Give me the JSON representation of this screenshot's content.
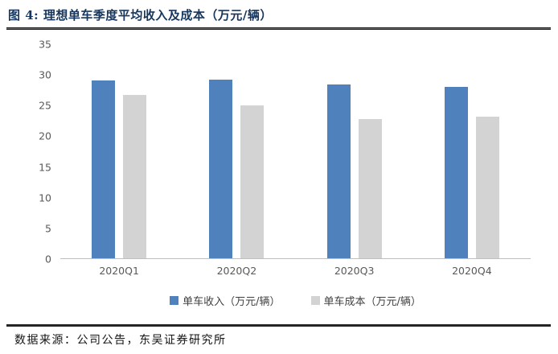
{
  "header": {
    "title": "图 4:  理想单车季度平均收入及成本（万元/辆）",
    "title_color": "#17365D"
  },
  "chart_data": {
    "type": "bar",
    "title": "理想单车季度平均收入及成本（万元/辆）",
    "categories": [
      "2020Q1",
      "2020Q2",
      "2020Q3",
      "2020Q4"
    ],
    "series": [
      {
        "name": "单车收入（万元/辆）",
        "color": "#4F81BD",
        "values": [
          29.1,
          29.2,
          28.4,
          28.0
        ]
      },
      {
        "name": "单车成本（万元/辆）",
        "color": "#D3D3D3",
        "values": [
          26.7,
          25.0,
          22.8,
          23.2
        ]
      }
    ],
    "xlabel": "",
    "ylabel": "",
    "ylim": [
      0,
      35
    ],
    "yticks": [
      0,
      5,
      10,
      15,
      20,
      25,
      30,
      35
    ],
    "grid": false,
    "legend_position": "bottom",
    "axis_line_color": "#BFBFBF",
    "tick_text_color": "#595959"
  },
  "footer": {
    "source": "数据来源：公司公告，东吴证券研究所"
  }
}
